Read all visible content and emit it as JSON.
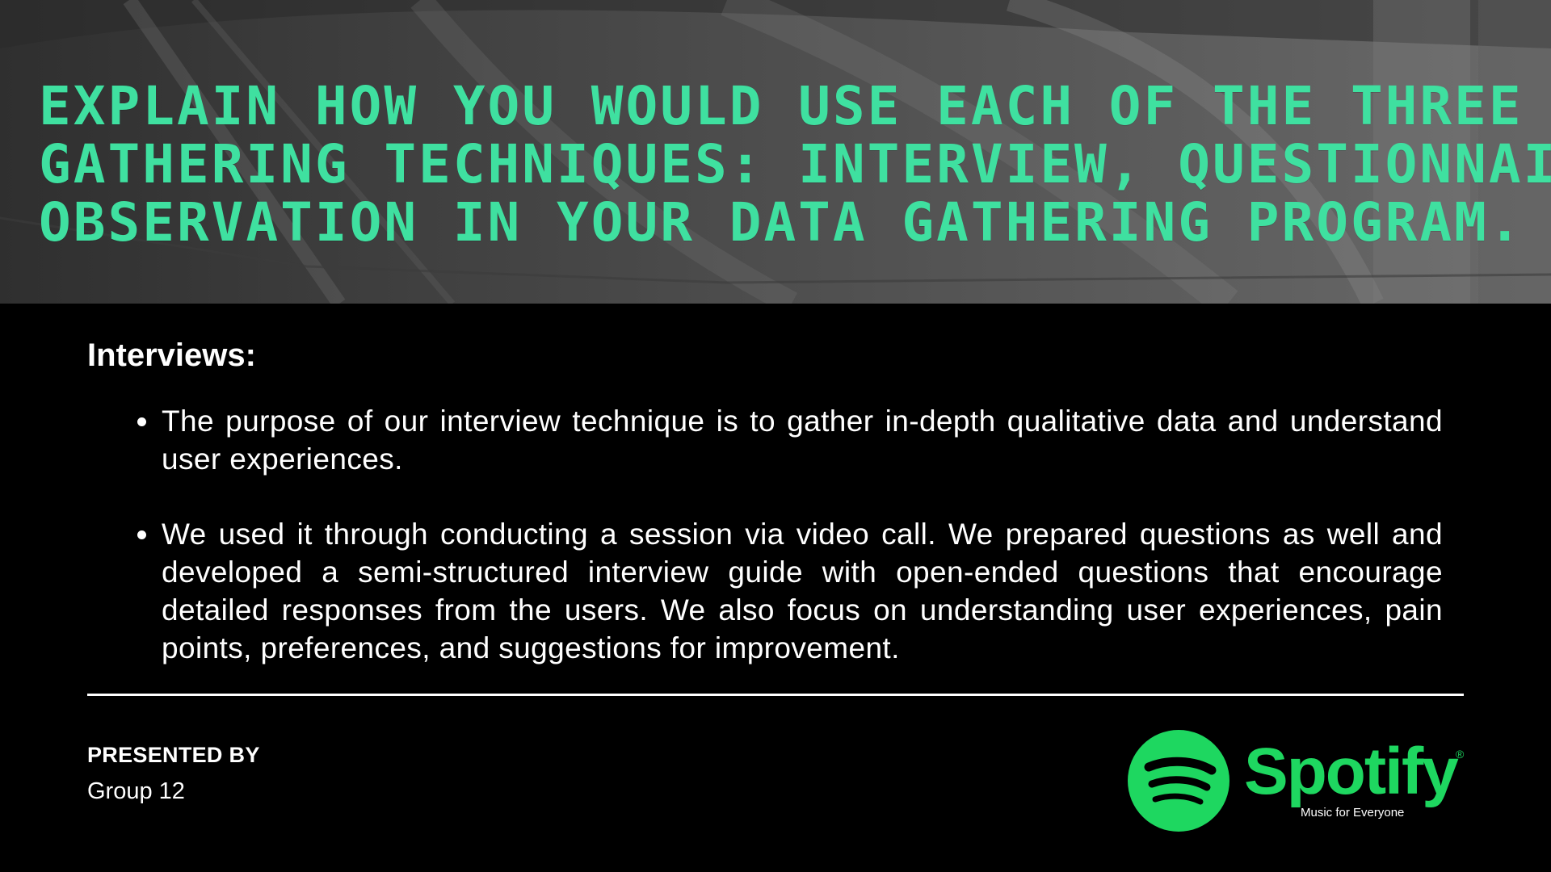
{
  "slide": {
    "title_lines": [
      "Explain how you would use each of the three data",
      "gathering techniques: interview, questionnaire, and",
      "observation in your data gathering program."
    ],
    "section_heading": "Interviews:",
    "bullets": [
      "The purpose of our interview technique is to gather in-depth qualitative data and understand user experiences.",
      "We used it through conducting a session via video call. We prepared questions as well and developed a semi-structured interview guide with open-ended questions that encourage detailed responses from the users. We also focus on understanding user experiences, pain points, preferences, and suggestions for improvement."
    ]
  },
  "footer": {
    "presented_by_label": "PRESENTED BY",
    "presented_by_value": "Group 12"
  },
  "logo": {
    "wordmark": "Spotify",
    "registered": "®",
    "tagline": "Music for Everyone",
    "icon": "spotify-logo-icon"
  },
  "colors": {
    "title": "#3fe0a0",
    "brand_green": "#1ed760",
    "background": "#000000",
    "text": "#ffffff"
  }
}
